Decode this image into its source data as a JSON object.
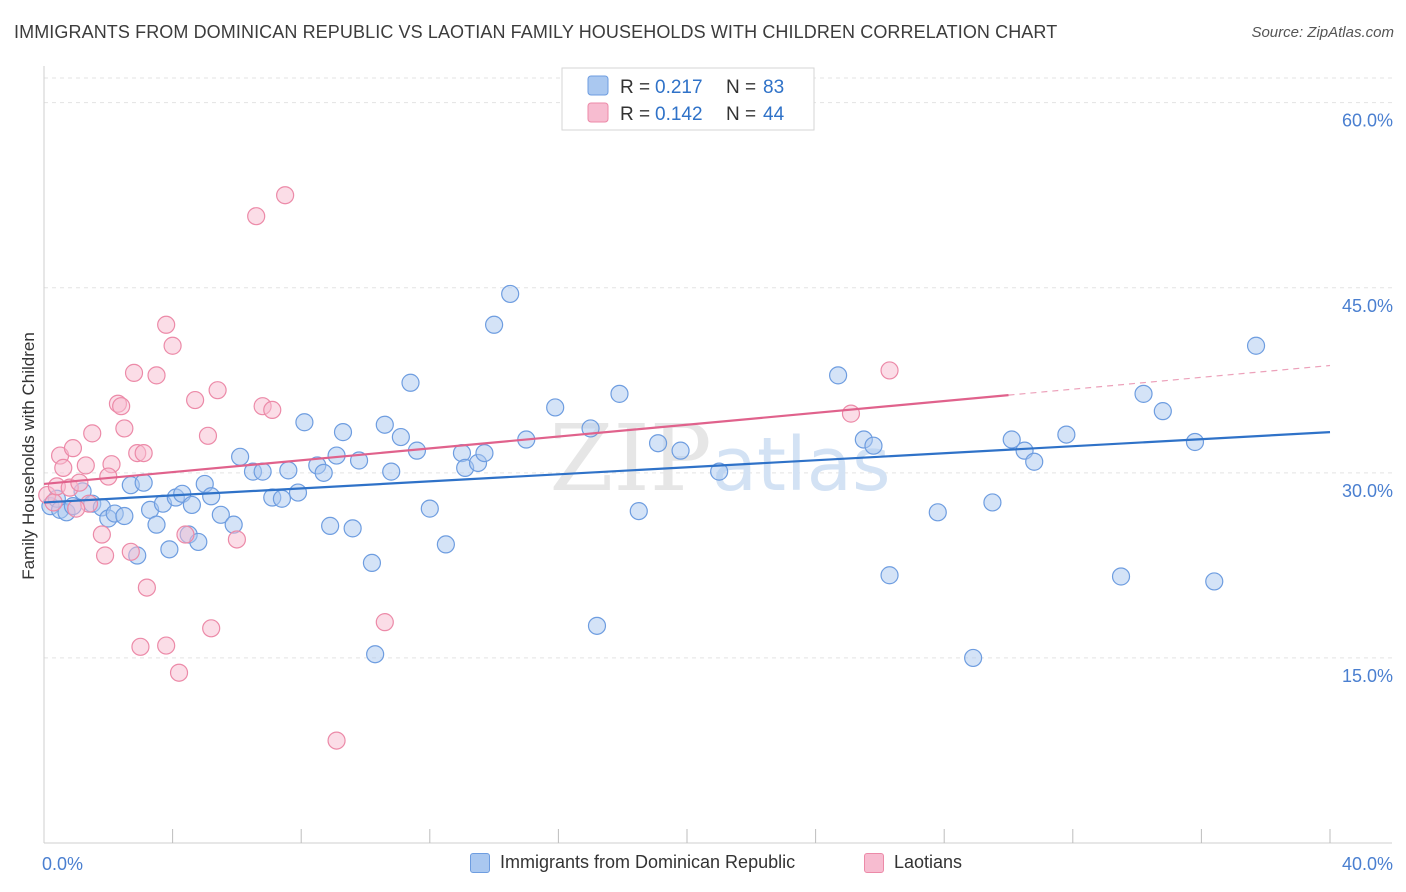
{
  "title": "IMMIGRANTS FROM DOMINICAN REPUBLIC VS LAOTIAN FAMILY HOUSEHOLDS WITH CHILDREN CORRELATION CHART",
  "source": "Source: ZipAtlas.com",
  "watermark": "ZIPatlas",
  "colors": {
    "blue_fill": "#aac8f0",
    "blue_stroke": "#6e9de0",
    "blue_line": "#2f72c8",
    "pink_fill": "#f7bcd0",
    "pink_stroke": "#ec8aa8",
    "pink_line": "#e0628c",
    "tick_label": "#4a7fd0",
    "grid": "#e3e3e3"
  },
  "legend_top": [
    {
      "r_label": "R =",
      "r_value": "0.217",
      "n_label": "N =",
      "n_value": "83"
    },
    {
      "r_label": "R =",
      "r_value": "0.142",
      "n_label": "N =",
      "n_value": "44"
    }
  ],
  "chart_data": {
    "type": "scatter",
    "title": "IMMIGRANTS FROM DOMINICAN REPUBLIC VS LAOTIAN FAMILY HOUSEHOLDS WITH CHILDREN CORRELATION CHART",
    "xlabel": "",
    "ylabel": "Family Households with Children",
    "xlim": [
      0,
      40
    ],
    "ylim": [
      0,
      62
    ],
    "x_tick_labels": [
      "0.0%",
      "40.0%"
    ],
    "y_ticks": [
      15,
      30,
      45,
      60
    ],
    "y_tick_labels": [
      "15.0%",
      "30.0%",
      "45.0%",
      "60.0%"
    ],
    "grid": true,
    "legend_position": "top-center",
    "series": [
      {
        "name": "Immigrants from Dominican Republic",
        "color": "#6e9de0",
        "r": 0.217,
        "n": 83,
        "trend": {
          "x0": 0,
          "y0": 27.6,
          "x1": 40,
          "y1": 33.3,
          "dashed_from": null
        },
        "points": [
          [
            0.2,
            27.3
          ],
          [
            0.4,
            27.9
          ],
          [
            0.5,
            27.0
          ],
          [
            0.7,
            26.8
          ],
          [
            0.9,
            27.3
          ],
          [
            1.2,
            28.5
          ],
          [
            1.5,
            27.5
          ],
          [
            1.8,
            27.2
          ],
          [
            2.0,
            26.3
          ],
          [
            2.2,
            26.7
          ],
          [
            2.5,
            26.5
          ],
          [
            2.7,
            29.0
          ],
          [
            2.9,
            23.3
          ],
          [
            3.1,
            29.2
          ],
          [
            3.3,
            27.0
          ],
          [
            3.5,
            25.8
          ],
          [
            3.7,
            27.5
          ],
          [
            3.9,
            23.8
          ],
          [
            4.1,
            28.0
          ],
          [
            4.3,
            28.3
          ],
          [
            4.5,
            25.0
          ],
          [
            4.6,
            27.4
          ],
          [
            4.8,
            24.4
          ],
          [
            5.0,
            29.1
          ],
          [
            5.2,
            28.1
          ],
          [
            5.5,
            26.6
          ],
          [
            5.9,
            25.8
          ],
          [
            6.1,
            31.3
          ],
          [
            6.5,
            30.1
          ],
          [
            6.8,
            30.1
          ],
          [
            7.1,
            28.0
          ],
          [
            7.4,
            27.9
          ],
          [
            7.6,
            30.2
          ],
          [
            7.9,
            28.4
          ],
          [
            8.1,
            34.1
          ],
          [
            8.5,
            30.6
          ],
          [
            8.7,
            30.0
          ],
          [
            8.9,
            25.7
          ],
          [
            9.1,
            31.4
          ],
          [
            9.3,
            33.3
          ],
          [
            9.6,
            25.5
          ],
          [
            9.8,
            31.0
          ],
          [
            10.2,
            22.7
          ],
          [
            10.3,
            15.3
          ],
          [
            10.6,
            33.9
          ],
          [
            10.8,
            30.1
          ],
          [
            11.1,
            32.9
          ],
          [
            11.4,
            37.3
          ],
          [
            11.6,
            31.8
          ],
          [
            12.0,
            27.1
          ],
          [
            12.5,
            24.2
          ],
          [
            13.0,
            31.6
          ],
          [
            13.1,
            30.4
          ],
          [
            13.5,
            30.8
          ],
          [
            13.7,
            31.6
          ],
          [
            14.0,
            42.0
          ],
          [
            14.5,
            44.5
          ],
          [
            15.0,
            32.7
          ],
          [
            15.9,
            35.3
          ],
          [
            17.0,
            33.6
          ],
          [
            17.2,
            17.6
          ],
          [
            17.9,
            36.4
          ],
          [
            18.5,
            26.9
          ],
          [
            19.1,
            32.4
          ],
          [
            19.8,
            31.8
          ],
          [
            21.0,
            30.1
          ],
          [
            24.7,
            37.9
          ],
          [
            25.5,
            32.7
          ],
          [
            25.8,
            32.2
          ],
          [
            26.3,
            21.7
          ],
          [
            27.8,
            26.8
          ],
          [
            28.9,
            15.0
          ],
          [
            29.5,
            27.6
          ],
          [
            30.1,
            32.7
          ],
          [
            30.5,
            31.8
          ],
          [
            30.8,
            30.9
          ],
          [
            31.8,
            33.1
          ],
          [
            33.5,
            21.6
          ],
          [
            34.2,
            36.4
          ],
          [
            34.8,
            35.0
          ],
          [
            35.8,
            32.5
          ],
          [
            36.4,
            21.2
          ],
          [
            37.7,
            40.3
          ]
        ]
      },
      {
        "name": "Laotians",
        "color": "#ec8aa8",
        "r": 0.142,
        "n": 44,
        "trend": {
          "x0": 0,
          "y0": 29.1,
          "x1": 40,
          "y1": 38.7,
          "dashed_from": 30.0
        },
        "points": [
          [
            0.1,
            28.2
          ],
          [
            0.3,
            27.6
          ],
          [
            0.4,
            28.9
          ],
          [
            0.5,
            31.4
          ],
          [
            0.6,
            30.4
          ],
          [
            0.8,
            28.8
          ],
          [
            0.9,
            32.0
          ],
          [
            1.1,
            29.2
          ],
          [
            1.3,
            30.6
          ],
          [
            1.4,
            27.5
          ],
          [
            1.5,
            33.2
          ],
          [
            1.8,
            25.0
          ],
          [
            1.9,
            23.3
          ],
          [
            2.1,
            30.7
          ],
          [
            2.3,
            35.6
          ],
          [
            2.4,
            35.4
          ],
          [
            2.5,
            33.6
          ],
          [
            2.7,
            23.6
          ],
          [
            2.8,
            38.1
          ],
          [
            2.9,
            31.6
          ],
          [
            3.0,
            15.9
          ],
          [
            3.1,
            31.6
          ],
          [
            3.2,
            20.7
          ],
          [
            3.5,
            37.9
          ],
          [
            3.8,
            42.0
          ],
          [
            3.8,
            16.0
          ],
          [
            4.0,
            40.3
          ],
          [
            4.2,
            13.8
          ],
          [
            4.4,
            25.0
          ],
          [
            4.7,
            35.9
          ],
          [
            5.1,
            33.0
          ],
          [
            5.2,
            17.4
          ],
          [
            5.4,
            36.7
          ],
          [
            6.0,
            24.6
          ],
          [
            6.6,
            50.8
          ],
          [
            6.8,
            35.4
          ],
          [
            7.1,
            35.1
          ],
          [
            7.5,
            52.5
          ],
          [
            9.1,
            8.3
          ],
          [
            10.6,
            17.9
          ],
          [
            25.1,
            34.8
          ],
          [
            26.3,
            38.3
          ],
          [
            1.0,
            27.1
          ],
          [
            2.0,
            29.7
          ]
        ]
      }
    ]
  }
}
